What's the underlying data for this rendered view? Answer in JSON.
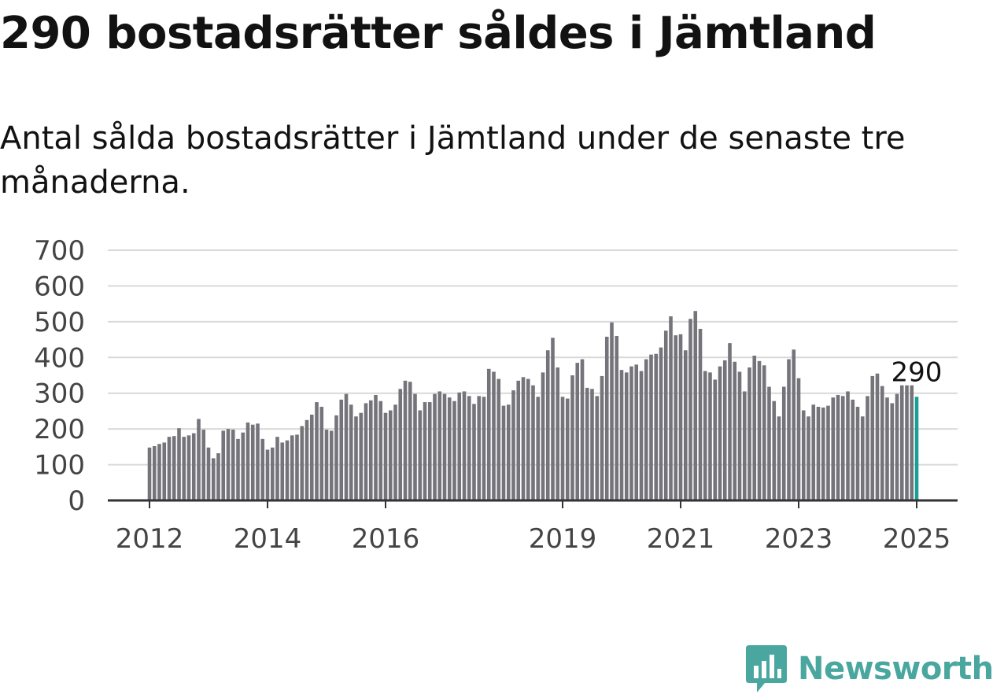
{
  "title": "290 bostadsrätter såldes i Jämtland",
  "subtitle": "Antal sålda bostadsrätter i Jämtland under de senaste tre månaderna.",
  "brand": {
    "name": "Newsworthy",
    "color": "#4aa79f",
    "icon": "newsworthy-logo-icon"
  },
  "colors": {
    "bar": "#75747b",
    "highlight": "#1a9e96",
    "grid": "#d9d9d9",
    "axis": "#333333"
  },
  "chart_data": {
    "type": "bar",
    "title": "",
    "xlabel": "",
    "ylabel": "",
    "ylim": [
      0,
      700
    ],
    "yticks": [
      0,
      100,
      200,
      300,
      400,
      500,
      600,
      700
    ],
    "xticks": [
      {
        "label": "2012",
        "index": 0
      },
      {
        "label": "2014",
        "index": 24
      },
      {
        "label": "2016",
        "index": 48
      },
      {
        "label": "2019",
        "index": 84
      },
      {
        "label": "2021",
        "index": 108
      },
      {
        "label": "2023",
        "index": 132
      },
      {
        "label": "2025",
        "index": 156
      }
    ],
    "grid": true,
    "legend": "none",
    "start": "2012-01",
    "frequency": "monthly",
    "highlight_last": true,
    "last_value_label": "290",
    "values": [
      148,
      152,
      158,
      162,
      178,
      180,
      202,
      178,
      182,
      188,
      228,
      198,
      148,
      118,
      132,
      195,
      200,
      198,
      172,
      190,
      218,
      212,
      215,
      172,
      142,
      148,
      178,
      162,
      168,
      182,
      184,
      208,
      225,
      240,
      275,
      262,
      198,
      195,
      238,
      282,
      298,
      268,
      235,
      245,
      272,
      280,
      295,
      278,
      245,
      252,
      268,
      312,
      335,
      332,
      298,
      252,
      275,
      275,
      298,
      305,
      298,
      288,
      278,
      302,
      305,
      292,
      270,
      292,
      290,
      368,
      360,
      340,
      265,
      268,
      308,
      335,
      345,
      340,
      322,
      290,
      358,
      420,
      455,
      372,
      290,
      285,
      350,
      385,
      395,
      315,
      312,
      292,
      348,
      458,
      498,
      460,
      365,
      358,
      375,
      380,
      362,
      395,
      408,
      410,
      428,
      475,
      515,
      462,
      465,
      420,
      508,
      530,
      480,
      362,
      358,
      338,
      375,
      392,
      440,
      388,
      360,
      305,
      372,
      405,
      390,
      378,
      318,
      278,
      235,
      318,
      395,
      422,
      342,
      252,
      235,
      268,
      262,
      260,
      265,
      288,
      295,
      292,
      305,
      282,
      262,
      235,
      292,
      348,
      355,
      320,
      288,
      272,
      298,
      322,
      322,
      322,
      290
    ]
  }
}
